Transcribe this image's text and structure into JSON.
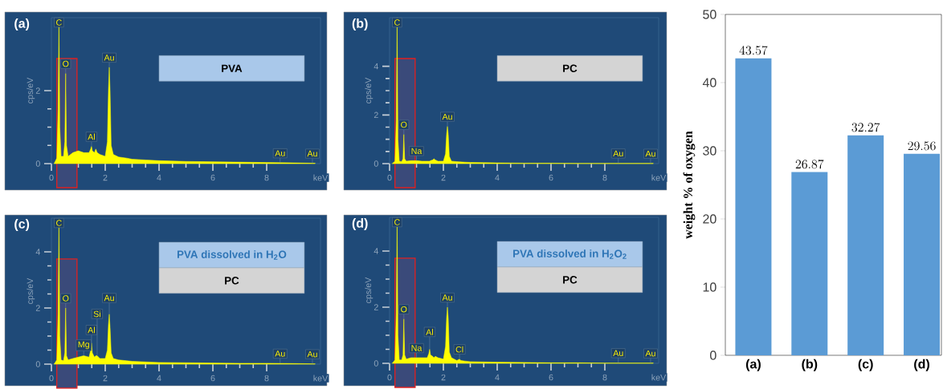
{
  "chart_data": [
    {
      "type": "area",
      "title": "(a)",
      "xlabel": "keV",
      "ylabel": "cps/eV",
      "color": "#ffff00",
      "x": [
        0.1,
        0.2,
        0.25,
        0.28,
        0.31,
        0.36,
        0.45,
        0.5,
        0.53,
        0.56,
        0.62,
        0.8,
        1.0,
        1.2,
        1.4,
        1.46,
        1.49,
        1.52,
        1.6,
        1.65,
        1.7,
        1.8,
        2.0,
        2.08,
        2.12,
        2.15,
        2.18,
        2.22,
        2.3,
        2.5,
        2.8,
        3.0,
        3.5,
        4.0,
        5.0,
        6.0,
        7.0,
        8.0,
        9.0,
        9.8
      ],
      "values": [
        0,
        0.15,
        1.5,
        4.0,
        1.0,
        0.2,
        0.2,
        0.6,
        2.47,
        0.5,
        0.2,
        0.3,
        0.35,
        0.3,
        0.3,
        0.4,
        0.47,
        0.35,
        0.3,
        0.4,
        0.3,
        0.25,
        0.2,
        0.6,
        2.0,
        2.64,
        2.0,
        0.5,
        0.25,
        0.18,
        0.15,
        0.12,
        0.1,
        0.08,
        0.06,
        0.05,
        0.04,
        0.03,
        0.02,
        0.01
      ],
      "xlim": [
        0,
        10
      ],
      "ylim": [
        0,
        4
      ],
      "xticks": [
        0,
        2,
        4,
        6,
        8
      ],
      "yticks": [
        0,
        2
      ],
      "bands": [
        {
          "axis": "x",
          "from": 0.2,
          "to": 0.95
        }
      ],
      "annotations": [
        "PVA",
        {
          "text": "C",
          "x": 0.28,
          "y": 4.0
        },
        {
          "text": "O",
          "x": 0.53,
          "y": 2.47
        },
        {
          "text": "Al",
          "x": 1.49,
          "y": 0.47
        },
        {
          "text": "Au",
          "x": 2.15,
          "y": 2.64
        },
        {
          "text": "Au",
          "x": 8.5,
          "y": 0.02
        },
        {
          "text": "Au",
          "x": 9.7,
          "y": 0.01
        }
      ]
    },
    {
      "type": "area",
      "title": "(b)",
      "xlabel": "keV",
      "ylabel": "cps/eV",
      "color": "#ffff00",
      "x": [
        0.1,
        0.2,
        0.25,
        0.28,
        0.31,
        0.36,
        0.45,
        0.5,
        0.53,
        0.56,
        0.62,
        0.8,
        1.0,
        1.2,
        1.4,
        1.46,
        1.49,
        1.52,
        1.6,
        1.65,
        1.7,
        1.8,
        2.0,
        2.08,
        2.12,
        2.15,
        2.18,
        2.22,
        2.3,
        2.5,
        2.8,
        3.0,
        3.5,
        4.0,
        5.0,
        6.0,
        7.0,
        8.0,
        9.0,
        9.8
      ],
      "values": [
        0,
        0.1,
        1.8,
        6.0,
        1.0,
        0.1,
        0.08,
        0.2,
        1.2,
        0.2,
        0.1,
        0.12,
        0.12,
        0.1,
        0.1,
        0.1,
        0.1,
        0.12,
        0.15,
        0.2,
        0.15,
        0.1,
        0.1,
        0.4,
        1.2,
        1.53,
        1.2,
        0.3,
        0.1,
        0.08,
        0.06,
        0.05,
        0.04,
        0.03,
        0.02,
        0.02,
        0.01,
        0.01,
        0.01,
        0.01
      ],
      "xlim": [
        0,
        10
      ],
      "ylim": [
        0,
        6
      ],
      "xticks": [
        0,
        2,
        4,
        6,
        8
      ],
      "yticks": [
        0,
        2,
        4
      ],
      "bands": [
        {
          "axis": "x",
          "from": 0.2,
          "to": 0.95
        }
      ],
      "annotations": [
        "PC",
        {
          "text": "C",
          "x": 0.28,
          "y": 6.0
        },
        {
          "text": "O",
          "x": 0.53,
          "y": 1.2
        },
        {
          "text": "Na",
          "x": 1.0,
          "y": 0.12
        },
        {
          "text": "Au",
          "x": 2.15,
          "y": 1.53
        },
        {
          "text": "Au",
          "x": 8.5,
          "y": 0.02
        },
        {
          "text": "Au",
          "x": 9.7,
          "y": 0.01
        }
      ]
    },
    {
      "type": "area",
      "title": "(c)",
      "xlabel": "keV",
      "ylabel": "cps/eV",
      "color": "#ffff00",
      "x": [
        0.1,
        0.2,
        0.25,
        0.28,
        0.31,
        0.36,
        0.45,
        0.5,
        0.53,
        0.56,
        0.62,
        0.8,
        1.0,
        1.2,
        1.4,
        1.46,
        1.49,
        1.52,
        1.6,
        1.65,
        1.7,
        1.8,
        2.0,
        2.08,
        2.12,
        2.15,
        2.18,
        2.22,
        2.3,
        2.5,
        2.8,
        3.0,
        3.5,
        4.0,
        5.0,
        6.0,
        7.0,
        8.0,
        9.0,
        9.8
      ],
      "values": [
        0,
        0.15,
        1.8,
        5.2,
        1.0,
        0.15,
        0.12,
        0.4,
        2.0,
        0.3,
        0.15,
        0.2,
        0.25,
        0.3,
        0.25,
        0.5,
        0.75,
        0.4,
        0.25,
        0.3,
        0.3,
        0.2,
        0.2,
        0.5,
        1.4,
        1.78,
        1.3,
        0.4,
        0.2,
        0.15,
        0.12,
        0.1,
        0.08,
        0.06,
        0.05,
        0.04,
        0.03,
        0.03,
        0.02,
        0.01
      ],
      "xlim": [
        0,
        10
      ],
      "ylim": [
        0,
        5.2
      ],
      "xticks": [
        0,
        2,
        4,
        6,
        8
      ],
      "yticks": [
        0,
        2,
        4
      ],
      "bands": [
        {
          "axis": "x",
          "from": 0.2,
          "to": 0.95
        }
      ],
      "annotations": [
        "**PVA** dissolved in H$_{2}$O",
        "PC",
        {
          "text": "C",
          "x": 0.28,
          "y": 5.2
        },
        {
          "text": "O",
          "x": 0.53,
          "y": 2.0
        },
        {
          "text": "Mg",
          "x": 1.2,
          "y": 0.3
        },
        {
          "text": "Al",
          "x": 1.49,
          "y": 0.75
        },
        {
          "text": "Si",
          "x": 1.7,
          "y": 0.3
        },
        {
          "text": "Au",
          "x": 2.15,
          "y": 1.78
        },
        {
          "text": "Au",
          "x": 8.5,
          "y": 0.03
        },
        {
          "text": "Au",
          "x": 9.7,
          "y": 0.01
        }
      ]
    },
    {
      "type": "area",
      "title": "(d)",
      "xlabel": "keV",
      "ylabel": "cps/eV",
      "color": "#ffff00",
      "x": [
        0.1,
        0.2,
        0.25,
        0.28,
        0.31,
        0.36,
        0.45,
        0.5,
        0.53,
        0.56,
        0.62,
        0.8,
        1.0,
        1.2,
        1.4,
        1.46,
        1.49,
        1.52,
        1.6,
        1.65,
        1.7,
        1.8,
        2.0,
        2.08,
        2.12,
        2.15,
        2.18,
        2.22,
        2.3,
        2.5,
        2.6,
        2.65,
        2.8,
        3.0,
        3.5,
        4.0,
        5.0,
        6.0,
        7.0,
        8.0,
        9.0,
        9.8
      ],
      "values": [
        0,
        0.12,
        1.8,
        5.2,
        1.0,
        0.12,
        0.12,
        0.3,
        1.58,
        0.3,
        0.15,
        0.2,
        0.2,
        0.2,
        0.2,
        0.35,
        0.5,
        0.3,
        0.25,
        0.2,
        0.25,
        0.2,
        0.15,
        0.6,
        1.6,
        2.0,
        1.6,
        0.4,
        0.2,
        0.1,
        0.15,
        0.1,
        0.08,
        0.06,
        0.05,
        0.04,
        0.03,
        0.02,
        0.02,
        0.01,
        0.01,
        0.01
      ],
      "xlim": [
        0,
        10
      ],
      "ylim": [
        0,
        5.2
      ],
      "xticks": [
        0,
        2,
        4,
        6,
        8
      ],
      "yticks": [
        0,
        2,
        4
      ],
      "bands": [
        {
          "axis": "x",
          "from": 0.2,
          "to": 0.95
        }
      ],
      "annotations": [
        "**PVA** dissolved in H$_{2}$O$_{2}$",
        "PC",
        {
          "text": "C",
          "x": 0.28,
          "y": 5.2
        },
        {
          "text": "O",
          "x": 0.53,
          "y": 1.58
        },
        {
          "text": "Na",
          "x": 1.0,
          "y": 0.2
        },
        {
          "text": "Al",
          "x": 1.49,
          "y": 0.5
        },
        {
          "text": "Au",
          "x": 2.15,
          "y": 2.0
        },
        {
          "text": "Cl",
          "x": 2.6,
          "y": 0.15
        },
        {
          "text": "Au",
          "x": 8.5,
          "y": 0.02
        },
        {
          "text": "Au",
          "x": 9.7,
          "y": 0.01
        }
      ]
    },
    {
      "type": "bar",
      "ylabel": "weight % of oxygen",
      "categories": [
        "(a)",
        "(b)",
        "(c)",
        "(d)"
      ],
      "values": [
        43.57,
        26.87,
        32.27,
        29.56
      ],
      "color": "#5b9bd5",
      "ylim": [
        0,
        50
      ],
      "yticks": [
        0,
        10,
        20,
        30,
        40,
        50
      ],
      "data_labels": true
    }
  ]
}
